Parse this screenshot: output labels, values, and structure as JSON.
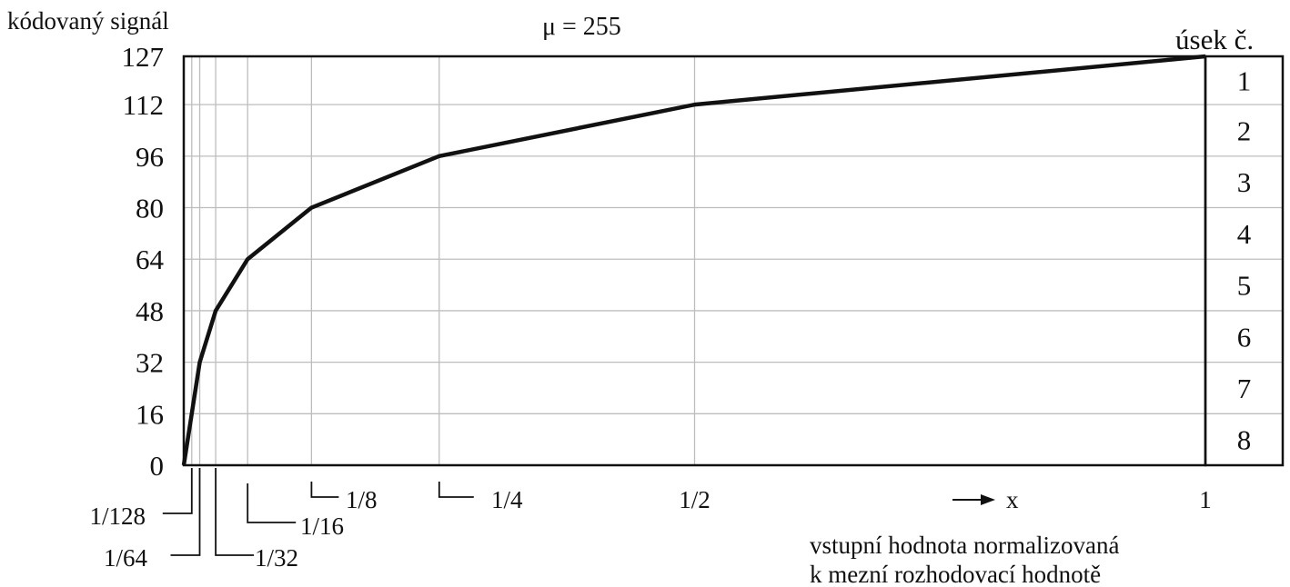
{
  "chart_data": {
    "type": "line",
    "title": "μ = 255",
    "ylabel": "kódovaný signál",
    "xlabel_lines": [
      "vstupní hodnota normalizovaná",
      "k mezní rozhodovací hodnotě"
    ],
    "x_arrow_label": "x",
    "segment_header": "úsek č.",
    "segments": [
      "1",
      "2",
      "3",
      "4",
      "5",
      "6",
      "7",
      "8"
    ],
    "xlim": [
      0,
      1
    ],
    "ylim": [
      0,
      127
    ],
    "y_ticks": [
      0,
      16,
      32,
      48,
      64,
      80,
      96,
      112,
      127
    ],
    "x_ticks": [
      {
        "value": 0.0078125,
        "label": "1/128"
      },
      {
        "value": 0.015625,
        "label": "1/64"
      },
      {
        "value": 0.03125,
        "label": "1/32"
      },
      {
        "value": 0.0625,
        "label": "1/16"
      },
      {
        "value": 0.125,
        "label": "1/8"
      },
      {
        "value": 0.25,
        "label": "1/4"
      },
      {
        "value": 0.5,
        "label": "1/2"
      },
      {
        "value": 1,
        "label": "1"
      }
    ],
    "series": [
      {
        "x": [
          0,
          0.0078125,
          0.015625,
          0.03125,
          0.0625,
          0.125,
          0.25,
          0.5,
          1
        ],
        "y": [
          0,
          16,
          32,
          48,
          64,
          80,
          96,
          112,
          127
        ]
      }
    ],
    "colors": {
      "curve": "#111111",
      "grid": "#bdbdbd",
      "frame": "#111111"
    }
  }
}
